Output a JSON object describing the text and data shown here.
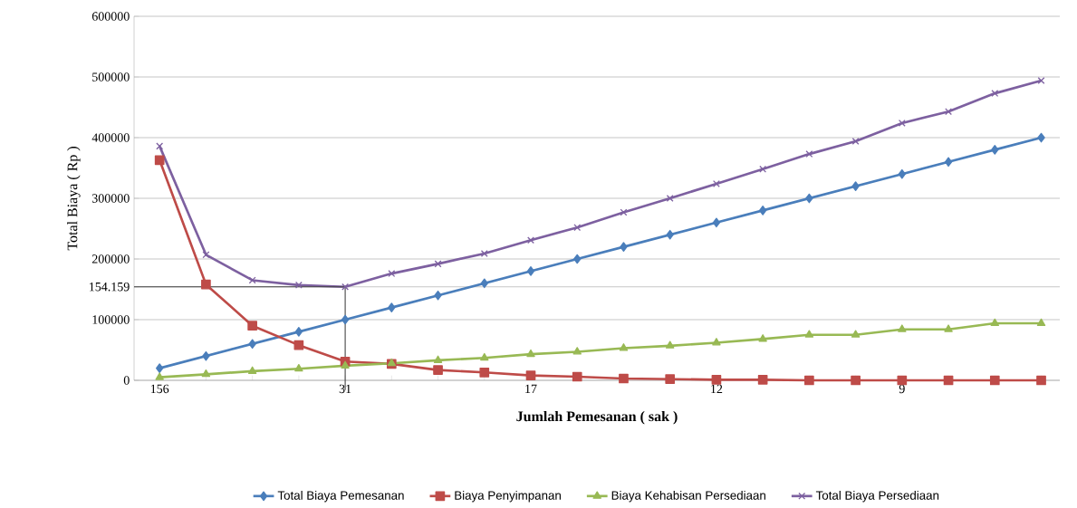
{
  "chart_data": {
    "type": "line",
    "xlabel": "Jumlah Pemesanan ( sak )",
    "ylabel": "Total Biaya ( Rp )",
    "categories": [
      "156",
      null,
      null,
      null,
      "31",
      null,
      null,
      null,
      "17",
      null,
      null,
      null,
      "12",
      null,
      null,
      null,
      "9",
      null,
      null,
      null
    ],
    "series": [
      {
        "name": "Total Biaya Pemesanan",
        "color": "#4a7ebb",
        "marker": "diamond",
        "values": [
          20000,
          40000,
          60000,
          80000,
          100000,
          120000,
          140000,
          160000,
          180000,
          200000,
          220000,
          240000,
          260000,
          280000,
          300000,
          320000,
          340000,
          360000,
          380000,
          400000
        ]
      },
      {
        "name": "Biaya Penyimpanan",
        "color": "#be4b48",
        "marker": "square",
        "values": [
          363000,
          158000,
          90000,
          58000,
          31000,
          27000,
          17000,
          13000,
          8000,
          6000,
          3000,
          2000,
          1000,
          1000,
          0,
          0,
          0,
          0,
          0,
          0
        ]
      },
      {
        "name": "Biaya Kehabisan Persediaan",
        "color": "#98b954",
        "marker": "triangle",
        "values": [
          5000,
          10000,
          15000,
          19000,
          24000,
          28000,
          33000,
          37000,
          43000,
          47000,
          53000,
          57000,
          62000,
          68000,
          75000,
          75000,
          84000,
          84000,
          94000,
          94000
        ]
      },
      {
        "name": "Total Biaya Persediaan",
        "color": "#7d60a0",
        "marker": "cross",
        "values": [
          386000,
          207000,
          165000,
          157000,
          154159,
          176000,
          192000,
          209000,
          231000,
          252000,
          277000,
          300000,
          324000,
          348000,
          373000,
          394000,
          424000,
          443000,
          473000,
          494000
        ]
      }
    ],
    "ylim": [
      0,
      600000
    ],
    "yticks": [
      0,
      100000,
      {
        "value": 154159,
        "label": "154.159"
      },
      200000,
      300000,
      400000,
      500000,
      600000
    ],
    "ref_lines": [
      {
        "axis": "y",
        "value": 154159,
        "color": "#404040"
      },
      {
        "axis": "x",
        "value": "31",
        "color": "#404040"
      }
    ],
    "grid": "y",
    "legend": "bottom"
  }
}
